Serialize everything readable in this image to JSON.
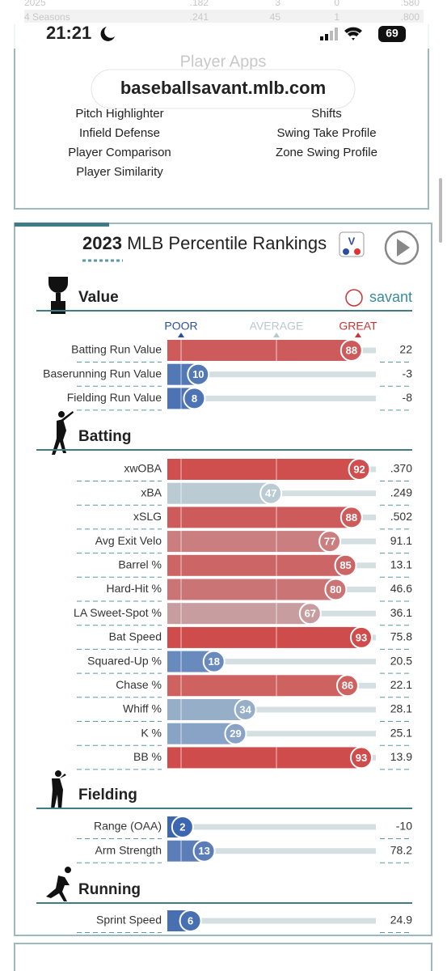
{
  "status_bar": {
    "time": "21:21",
    "battery": "69"
  },
  "background_table": {
    "rows": [
      [
        "2025",
        ".182",
        "3",
        "0",
        ".580"
      ],
      [
        "4 Seasons",
        ".241",
        "45",
        "1",
        ".800"
      ]
    ]
  },
  "url": "baseballsavant.mlb.com",
  "player_apps": {
    "title": "Player Apps",
    "left": [
      "Pitch Highlighter",
      "Infield Defense",
      "Player Comparison",
      "Player Similarity"
    ],
    "right": [
      "Shifts",
      "Swing Take Profile",
      "Zone Swing Profile"
    ]
  },
  "rankings": {
    "year": "2023",
    "title": "MLB Percentile Rankings",
    "brand": "savant",
    "legend": [
      "POOR",
      "AVERAGE",
      "GREAT"
    ],
    "sections": [
      {
        "title": "Value",
        "rows": [
          {
            "label": "Batting Run Value",
            "percentile": 88,
            "value": "22"
          },
          {
            "label": "Baserunning Run Value",
            "percentile": 10,
            "value": "-3"
          },
          {
            "label": "Fielding Run Value",
            "percentile": 8,
            "value": "-8"
          }
        ]
      },
      {
        "title": "Batting",
        "rows": [
          {
            "label": "xwOBA",
            "percentile": 92,
            "value": ".370"
          },
          {
            "label": "xBA",
            "percentile": 47,
            "value": ".249"
          },
          {
            "label": "xSLG",
            "percentile": 88,
            "value": ".502"
          },
          {
            "label": "Avg Exit Velo",
            "percentile": 77,
            "value": "91.1"
          },
          {
            "label": "Barrel %",
            "percentile": 85,
            "value": "13.1"
          },
          {
            "label": "Hard-Hit %",
            "percentile": 80,
            "value": "46.6"
          },
          {
            "label": "LA Sweet-Spot %",
            "percentile": 67,
            "value": "36.1"
          },
          {
            "label": "Bat Speed",
            "percentile": 93,
            "value": "75.8"
          },
          {
            "label": "Squared-Up %",
            "percentile": 18,
            "value": "20.5"
          },
          {
            "label": "Chase %",
            "percentile": 86,
            "value": "22.1"
          },
          {
            "label": "Whiff %",
            "percentile": 34,
            "value": "28.1"
          },
          {
            "label": "K %",
            "percentile": 29,
            "value": "25.1"
          },
          {
            "label": "BB %",
            "percentile": 93,
            "value": "13.9"
          }
        ]
      },
      {
        "title": "Fielding",
        "rows": [
          {
            "label": "Range (OAA)",
            "percentile": 2,
            "value": "-10"
          },
          {
            "label": "Arm Strength",
            "percentile": 13,
            "value": "78.2"
          }
        ]
      },
      {
        "title": "Running",
        "rows": [
          {
            "label": "Sprint Speed",
            "percentile": 6,
            "value": "24.9"
          }
        ]
      }
    ]
  }
}
